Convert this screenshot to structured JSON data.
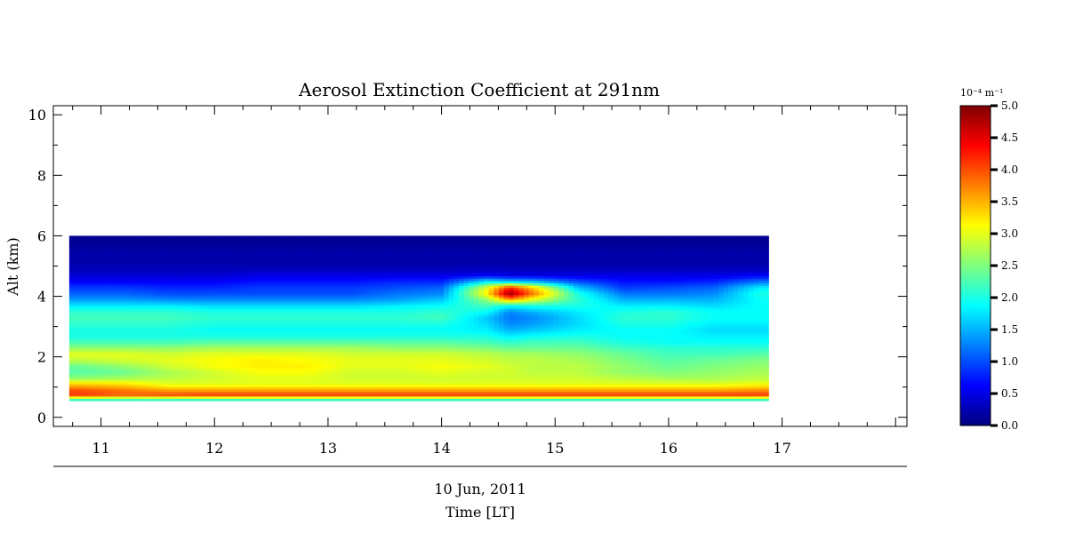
{
  "chart_data": {
    "type": "heatmap",
    "title": "Aerosol Extinction Coefficient at 291nm",
    "ylabel": "Alt (km)",
    "xlabel": "Time [LT]",
    "date_label": "10 Jun, 2011",
    "colorbar_unit": "10⁻⁴ m⁻¹",
    "x_ticks": [
      "11",
      "12",
      "13",
      "14",
      "15",
      "16",
      "17"
    ],
    "x_tick_values": [
      11,
      12,
      13,
      14,
      15,
      16,
      17
    ],
    "y_ticks": [
      "0",
      "2",
      "4",
      "6",
      "8",
      "10"
    ],
    "y_tick_values": [
      0,
      2,
      4,
      6,
      8,
      10
    ],
    "xlim": [
      10.58,
      18.1
    ],
    "ylim": [
      -0.3,
      10.3
    ],
    "data_x_range": [
      10.72,
      16.88
    ],
    "data_y_range": [
      0.55,
      6.0
    ],
    "colorbar_ticks": [
      "0.0",
      "0.5",
      "1.0",
      "1.5",
      "2.0",
      "2.5",
      "3.0",
      "3.5",
      "4.0",
      "4.5",
      "5.0"
    ],
    "colorbar_tick_values": [
      0,
      0.5,
      1.0,
      1.5,
      2.0,
      2.5,
      3.0,
      3.5,
      4.0,
      4.5,
      5.0
    ],
    "colorbar_range": [
      0,
      5
    ],
    "colormap": [
      "#00007f",
      "#0000ff",
      "#007fff",
      "#00ffff",
      "#7fff7f",
      "#ffff00",
      "#ff7f00",
      "#ff0000",
      "#7f0000"
    ],
    "altitudes_km": [
      0.6,
      0.75,
      0.9,
      1.1,
      1.3,
      1.5,
      1.7,
      1.9,
      2.1,
      2.3,
      2.5,
      2.7,
      2.9,
      3.1,
      3.3,
      3.5,
      3.7,
      3.9,
      4.1,
      4.3,
      4.5,
      4.7,
      4.9,
      5.2,
      5.5,
      5.8
    ],
    "times_lt": [
      10.8,
      11.2,
      11.6,
      12.0,
      12.4,
      12.8,
      13.2,
      13.6,
      14.0,
      14.4,
      14.6,
      14.8,
      15.2,
      15.6,
      16.0,
      16.4,
      16.8
    ],
    "extinction_by_time": [
      [
        2.2,
        4.1,
        4.0,
        3.4,
        2.6,
        2.3,
        2.4,
        2.8,
        3.0,
        2.6,
        2.2,
        2.0,
        2.0,
        2.1,
        2.2,
        2.1,
        1.8,
        1.4,
        1.1,
        0.9,
        0.6,
        0.4,
        0.3,
        0.2,
        0.2,
        0.1
      ],
      [
        2.2,
        3.9,
        3.8,
        3.3,
        2.7,
        2.4,
        2.6,
        2.9,
        3.0,
        2.6,
        2.2,
        2.0,
        2.0,
        2.1,
        2.2,
        2.1,
        1.8,
        1.4,
        1.1,
        0.9,
        0.6,
        0.4,
        0.3,
        0.2,
        0.2,
        0.1
      ],
      [
        2.2,
        4.0,
        3.6,
        3.0,
        2.8,
        2.7,
        2.9,
        3.0,
        2.9,
        2.6,
        2.2,
        2.0,
        2.0,
        2.1,
        2.2,
        2.1,
        1.8,
        1.3,
        1.0,
        0.8,
        0.6,
        0.4,
        0.3,
        0.2,
        0.2,
        0.1
      ],
      [
        2.2,
        4.1,
        3.6,
        3.0,
        2.9,
        2.9,
        3.1,
        3.1,
        3.0,
        2.7,
        2.3,
        2.0,
        1.9,
        2.0,
        2.1,
        2.0,
        1.7,
        1.3,
        1.0,
        0.8,
        0.6,
        0.4,
        0.3,
        0.2,
        0.2,
        0.1
      ],
      [
        2.2,
        4.1,
        3.6,
        3.0,
        3.0,
        3.1,
        3.2,
        3.2,
        3.0,
        2.7,
        2.3,
        2.0,
        1.9,
        2.0,
        2.1,
        2.0,
        1.7,
        1.3,
        1.0,
        0.9,
        0.7,
        0.5,
        0.3,
        0.2,
        0.2,
        0.1
      ],
      [
        2.2,
        4.1,
        3.6,
        3.0,
        3.0,
        3.1,
        3.2,
        3.1,
        3.0,
        2.7,
        2.3,
        2.0,
        1.9,
        2.0,
        2.1,
        2.0,
        1.7,
        1.3,
        1.0,
        0.9,
        0.7,
        0.5,
        0.3,
        0.2,
        0.2,
        0.1
      ],
      [
        2.2,
        4.1,
        3.6,
        3.0,
        2.9,
        2.9,
        3.0,
        3.0,
        2.9,
        2.7,
        2.3,
        2.0,
        1.9,
        2.0,
        2.1,
        2.0,
        1.7,
        1.3,
        1.0,
        0.9,
        0.7,
        0.5,
        0.3,
        0.2,
        0.2,
        0.1
      ],
      [
        2.2,
        4.1,
        3.6,
        3.0,
        2.9,
        2.9,
        3.0,
        3.0,
        2.9,
        2.6,
        2.3,
        2.0,
        1.9,
        2.0,
        2.1,
        2.0,
        1.8,
        1.4,
        1.2,
        1.0,
        0.8,
        0.5,
        0.3,
        0.2,
        0.2,
        0.1
      ],
      [
        2.2,
        4.1,
        3.6,
        3.0,
        2.9,
        3.0,
        3.1,
        3.0,
        2.9,
        2.6,
        2.3,
        2.0,
        1.9,
        2.0,
        2.2,
        2.1,
        1.9,
        1.6,
        1.3,
        1.1,
        0.8,
        0.5,
        0.3,
        0.2,
        0.2,
        0.1
      ],
      [
        2.2,
        4.1,
        3.6,
        3.0,
        2.9,
        2.9,
        3.0,
        2.9,
        2.8,
        2.5,
        2.2,
        2.0,
        1.8,
        1.7,
        1.6,
        1.9,
        2.2,
        2.6,
        3.2,
        3.0,
        1.8,
        0.6,
        0.3,
        0.2,
        0.2,
        0.1
      ],
      [
        2.2,
        4.1,
        3.6,
        3.0,
        2.9,
        2.9,
        2.9,
        2.8,
        2.7,
        2.4,
        2.1,
        1.8,
        1.5,
        1.3,
        1.2,
        1.3,
        1.9,
        3.6,
        4.9,
        4.2,
        1.6,
        0.5,
        0.3,
        0.2,
        0.2,
        0.1
      ],
      [
        2.2,
        4.1,
        3.6,
        3.0,
        2.9,
        2.8,
        2.8,
        2.8,
        2.7,
        2.4,
        2.2,
        1.9,
        1.6,
        1.4,
        1.3,
        1.5,
        2.0,
        3.0,
        3.8,
        3.4,
        1.5,
        0.5,
        0.3,
        0.2,
        0.2,
        0.1
      ],
      [
        2.2,
        4.1,
        3.6,
        3.0,
        2.9,
        2.8,
        2.8,
        2.7,
        2.6,
        2.4,
        2.2,
        2.0,
        1.8,
        1.7,
        1.7,
        1.8,
        2.0,
        2.1,
        2.0,
        1.6,
        1.0,
        0.5,
        0.3,
        0.2,
        0.2,
        0.1
      ],
      [
        2.2,
        4.1,
        3.6,
        3.0,
        2.8,
        2.6,
        2.6,
        2.5,
        2.4,
        2.2,
        2.0,
        1.9,
        1.9,
        2.0,
        2.1,
        2.0,
        1.8,
        1.5,
        1.2,
        0.9,
        0.7,
        0.5,
        0.3,
        0.2,
        0.2,
        0.1
      ],
      [
        2.2,
        4.1,
        3.6,
        3.0,
        2.7,
        2.5,
        2.4,
        2.3,
        2.2,
        2.1,
        1.9,
        1.9,
        1.9,
        2.0,
        2.1,
        2.1,
        1.8,
        1.5,
        1.2,
        1.0,
        0.7,
        0.5,
        0.3,
        0.2,
        0.2,
        0.1
      ],
      [
        2.2,
        4.1,
        3.6,
        3.0,
        2.7,
        2.6,
        2.5,
        2.4,
        2.2,
        2.1,
        1.9,
        1.8,
        1.7,
        1.8,
        1.9,
        1.9,
        1.7,
        1.5,
        1.3,
        1.1,
        0.8,
        0.5,
        0.3,
        0.2,
        0.2,
        0.1
      ],
      [
        2.2,
        4.1,
        3.7,
        3.1,
        2.8,
        2.7,
        2.6,
        2.5,
        2.3,
        2.1,
        1.9,
        1.8,
        1.7,
        1.8,
        1.9,
        1.9,
        1.9,
        1.9,
        2.0,
        1.8,
        1.2,
        0.6,
        0.3,
        0.2,
        0.2,
        0.1
      ]
    ]
  }
}
